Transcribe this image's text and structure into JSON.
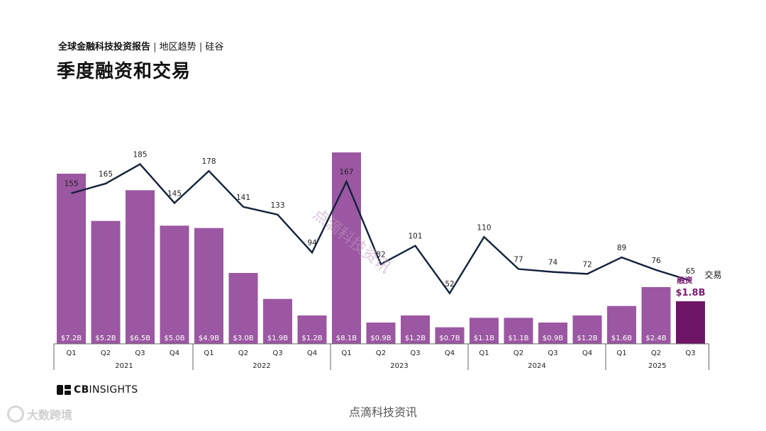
{
  "header": {
    "breadcrumb_main": "全球金融科技投资报告",
    "breadcrumb_sep1": " | ",
    "breadcrumb_part2": "地区趋势",
    "breadcrumb_sep2": " | ",
    "breadcrumb_part3": "硅谷",
    "title": "季度融资和交易"
  },
  "colors": {
    "bar": "#9b57a1",
    "bar_highlight": "#6e1568",
    "line": "#13213d",
    "axis": "#666666",
    "bar_label_text": "#ffffff",
    "highlight_label": "#7a1d73"
  },
  "chart_data": {
    "type": "bar",
    "x_quarters": [
      "Q1",
      "Q2",
      "Q3",
      "Q4",
      "Q1",
      "Q2",
      "Q3",
      "Q4",
      "Q1",
      "Q2",
      "Q3",
      "Q4",
      "Q1",
      "Q2",
      "Q3",
      "Q4",
      "Q1",
      "Q2",
      "Q3"
    ],
    "x_years": [
      {
        "label": "2021",
        "quarters": 4
      },
      {
        "label": "2022",
        "quarters": 4
      },
      {
        "label": "2023",
        "quarters": 4
      },
      {
        "label": "2024",
        "quarters": 4
      },
      {
        "label": "2025",
        "quarters": 3
      }
    ],
    "series": [
      {
        "name": "融资",
        "kind": "bar",
        "values": [
          7.2,
          5.2,
          6.5,
          5.0,
          4.9,
          3.0,
          1.9,
          1.2,
          8.1,
          0.9,
          1.2,
          0.7,
          1.1,
          1.1,
          0.9,
          1.2,
          1.6,
          2.4,
          1.8
        ],
        "labels": [
          "$7.2B",
          "$5.2B",
          "$6.5B",
          "$5.0B",
          "$4.9B",
          "$3.0B",
          "$1.9B",
          "$1.2B",
          "$8.1B",
          "$0.9B",
          "$1.2B",
          "$0.7B",
          "$1.1B",
          "$1.1B",
          "$0.9B",
          "$1.2B",
          "$1.6B",
          "$2.4B",
          "$1.8B"
        ],
        "ylim": [
          0,
          8.1
        ]
      },
      {
        "name": "交易",
        "kind": "line",
        "values": [
          155,
          165,
          185,
          145,
          178,
          141,
          133,
          94,
          167,
          82,
          101,
          52,
          110,
          77,
          74,
          72,
          89,
          76,
          65
        ],
        "ylim": [
          0,
          290
        ]
      }
    ],
    "highlight_last": true
  },
  "footer": {
    "brand_bold": "CB",
    "brand_rest": "INSIGHTS",
    "caption": "点滴科技资讯",
    "badge_text": "大数跨境",
    "watermark": "点滴科技资讯"
  }
}
